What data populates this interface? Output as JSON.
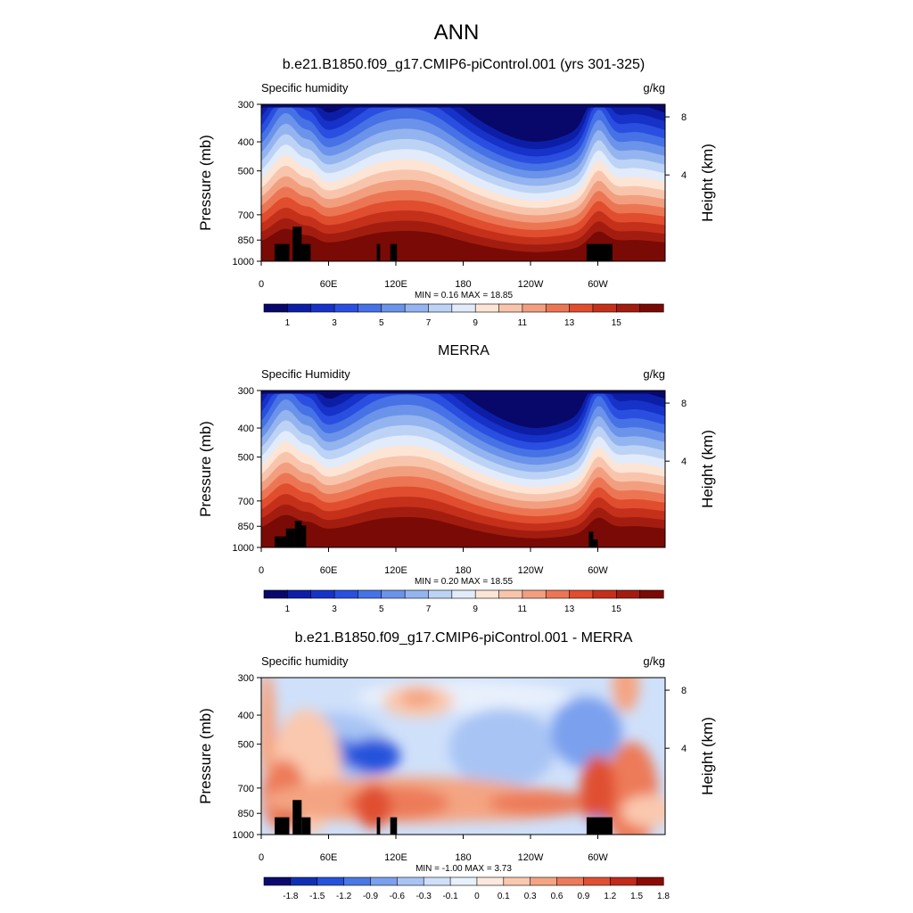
{
  "main_title": "ANN",
  "colors": {
    "moist": [
      "#08086b",
      "#0d1ea6",
      "#1732c8",
      "#2a4fe0",
      "#4672e6",
      "#6b93ea",
      "#93b4ef",
      "#bdd3f5",
      "#e2ebfa",
      "#fde5d6",
      "#f8c5ac",
      "#f29f80",
      "#ec7654",
      "#e04d2f",
      "#c5301b",
      "#a21d10",
      "#7a0a05"
    ],
    "diff": [
      "#0a0a6e",
      "#1030b4",
      "#2552dc",
      "#4a78e6",
      "#7aa0ee",
      "#a8c4f4",
      "#cfe0fa",
      "#e8f0fc",
      "#fde8dc",
      "#fac8ae",
      "#f4a482",
      "#ed7a58",
      "#e04f32",
      "#c22a1a",
      "#8c0a06"
    ],
    "terrain": "#000000"
  },
  "chart_data": [
    {
      "type": "heatmap",
      "title": "b.e21.B1850.f09_g17.CMIP6-piControl.001 (yrs 301-325)",
      "left_label": "Specific humidity",
      "units": "g/kg",
      "ylabel": "Pressure (mb)",
      "y2label": "Height (km)",
      "yticks": [
        300,
        400,
        500,
        700,
        850,
        1000
      ],
      "y2ticks": [
        8,
        4
      ],
      "xticks": [
        "0",
        "60E",
        "120E",
        "180",
        "120W",
        "60W"
      ],
      "x_values": [
        0,
        60,
        120,
        180,
        240,
        300
      ],
      "xlim": [
        0,
        360
      ],
      "ylim": [
        1000,
        300
      ],
      "min": 0.16,
      "max": 18.85,
      "stats_text": "MIN =   0.16  MAX =  18.85",
      "colorbar_labels": [
        "1",
        "3",
        "5",
        "7",
        "9",
        "11",
        "13",
        "15"
      ],
      "palette": "moist",
      "terrain": "model"
    },
    {
      "type": "heatmap",
      "title": "MERRA",
      "left_label": "Specific Humidity",
      "units": "g/kg",
      "ylabel": "Pressure (mb)",
      "y2label": "Height (km)",
      "yticks": [
        300,
        400,
        500,
        700,
        850,
        1000
      ],
      "y2ticks": [
        8,
        4
      ],
      "xticks": [
        "0",
        "60E",
        "120E",
        "180",
        "120W",
        "60W"
      ],
      "x_values": [
        0,
        60,
        120,
        180,
        240,
        300
      ],
      "xlim": [
        0,
        360
      ],
      "ylim": [
        1000,
        300
      ],
      "min": 0.2,
      "max": 18.55,
      "stats_text": "MIN =   0.20  MAX =  18.55",
      "colorbar_labels": [
        "1",
        "3",
        "5",
        "7",
        "9",
        "11",
        "13",
        "15"
      ],
      "palette": "moist",
      "terrain": "obs"
    },
    {
      "type": "heatmap",
      "title": "b.e21.B1850.f09_g17.CMIP6-piControl.001 - MERRA",
      "left_label": "Specific humidity",
      "units": "g/kg",
      "ylabel": "Pressure (mb)",
      "y2label": "Height (km)",
      "yticks": [
        300,
        400,
        500,
        700,
        850,
        1000
      ],
      "y2ticks": [
        8,
        4
      ],
      "xticks": [
        "0",
        "60E",
        "120E",
        "180",
        "120W",
        "60W"
      ],
      "x_values": [
        0,
        60,
        120,
        180,
        240,
        300
      ],
      "xlim": [
        0,
        360
      ],
      "ylim": [
        1000,
        300
      ],
      "min": -1.0,
      "max": 3.73,
      "stats_text": "MIN =  -1.00  MAX =   3.73",
      "colorbar_labels": [
        "-1.8",
        "-1.5",
        "-1.2",
        "-0.9",
        "-0.6",
        "-0.3",
        "-0.1",
        "0",
        "0.1",
        "0.3",
        "0.6",
        "0.9",
        "1.2",
        "1.5",
        "1.8"
      ],
      "palette": "diff",
      "terrain": "model"
    }
  ]
}
